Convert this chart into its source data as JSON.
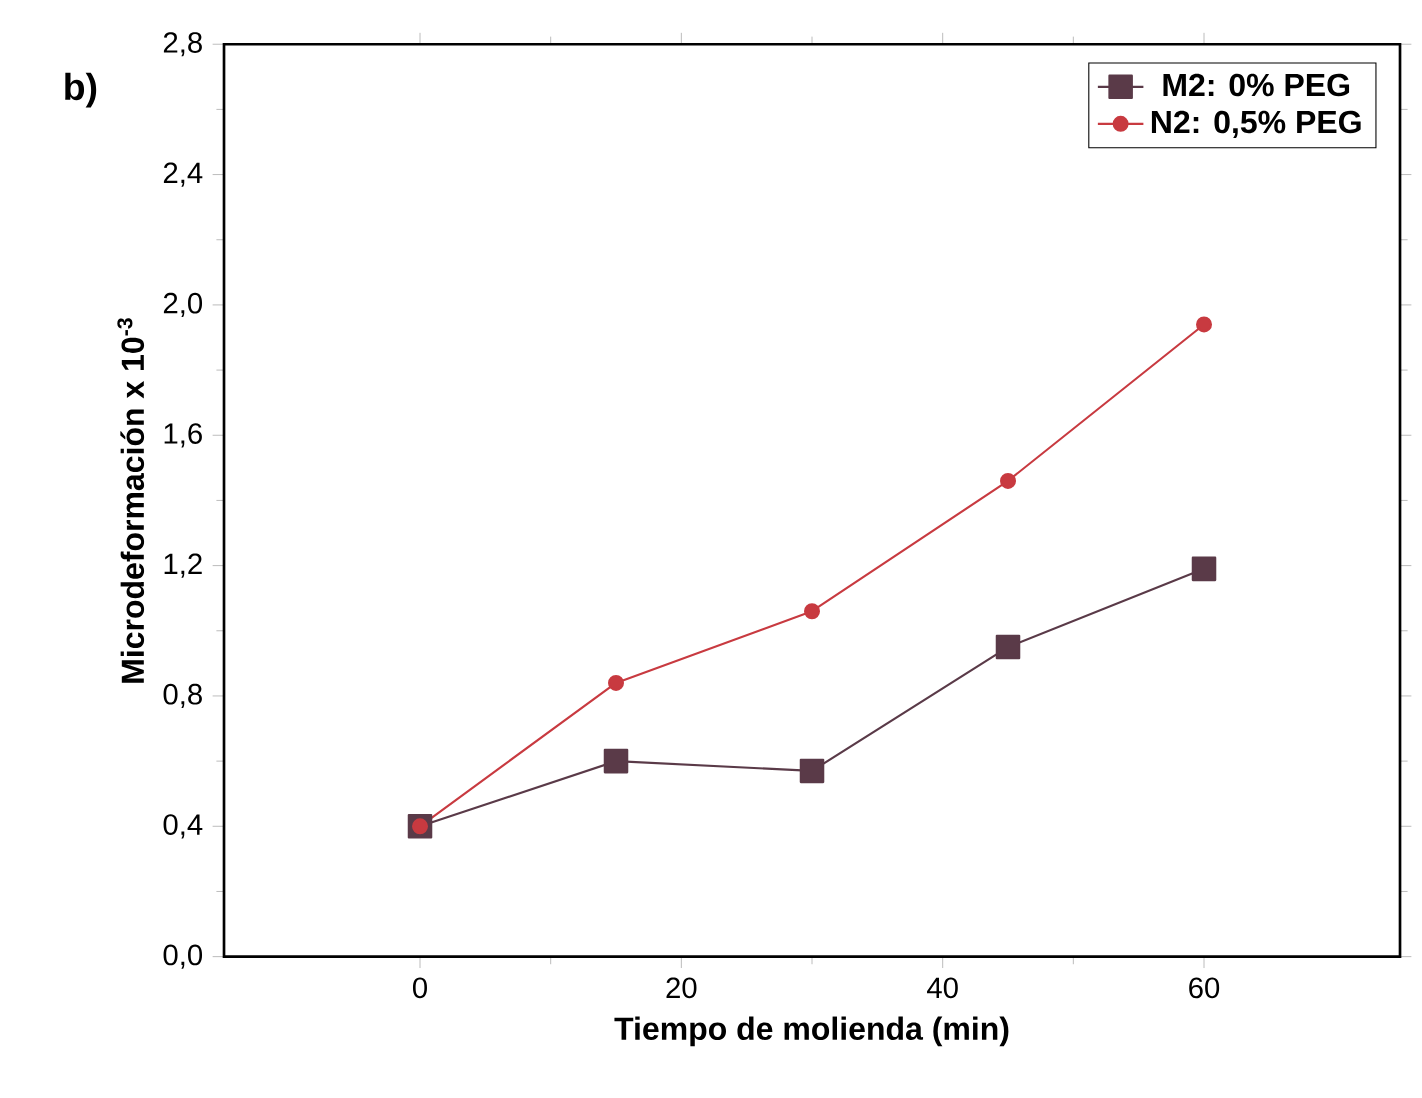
{
  "chart_data": {
    "type": "line",
    "xlabel": "Tiempo de molienda (min)",
    "ylabel": "Microdeformación x 10$^{-3}$",
    "annotations": [
      "b)"
    ],
    "x": [
      0,
      15,
      30,
      45,
      60
    ],
    "series": [
      {
        "name": "M2: 0% PEG",
        "color": "#5a3a48",
        "marker": "square",
        "values": [
          0.4,
          0.6,
          0.57,
          0.95,
          1.19
        ]
      },
      {
        "name": "N2: 0,5% PEG",
        "color": "#c83a40",
        "marker": "circle",
        "values": [
          0.4,
          0.84,
          1.06,
          1.46,
          1.94
        ]
      }
    ],
    "xlim": [
      -15,
      75
    ],
    "ylim": [
      0,
      2.8
    ],
    "xticks": [
      0,
      20,
      40,
      60
    ],
    "yticks": [
      {
        "value": 0,
        "label": "0,0"
      },
      {
        "value": 0.4,
        "label": "0,4"
      },
      {
        "value": 0.8,
        "label": "0,8"
      },
      {
        "value": 1.2,
        "label": "1,2"
      },
      {
        "value": 1.6,
        "label": "1,6"
      },
      {
        "value": 2.0,
        "label": "2,0"
      },
      {
        "value": 2.4,
        "label": "2,4"
      },
      {
        "value": 2.8,
        "label": "2,8"
      }
    ],
    "legend": "top right",
    "grid": false,
    "line_style": "solid"
  }
}
